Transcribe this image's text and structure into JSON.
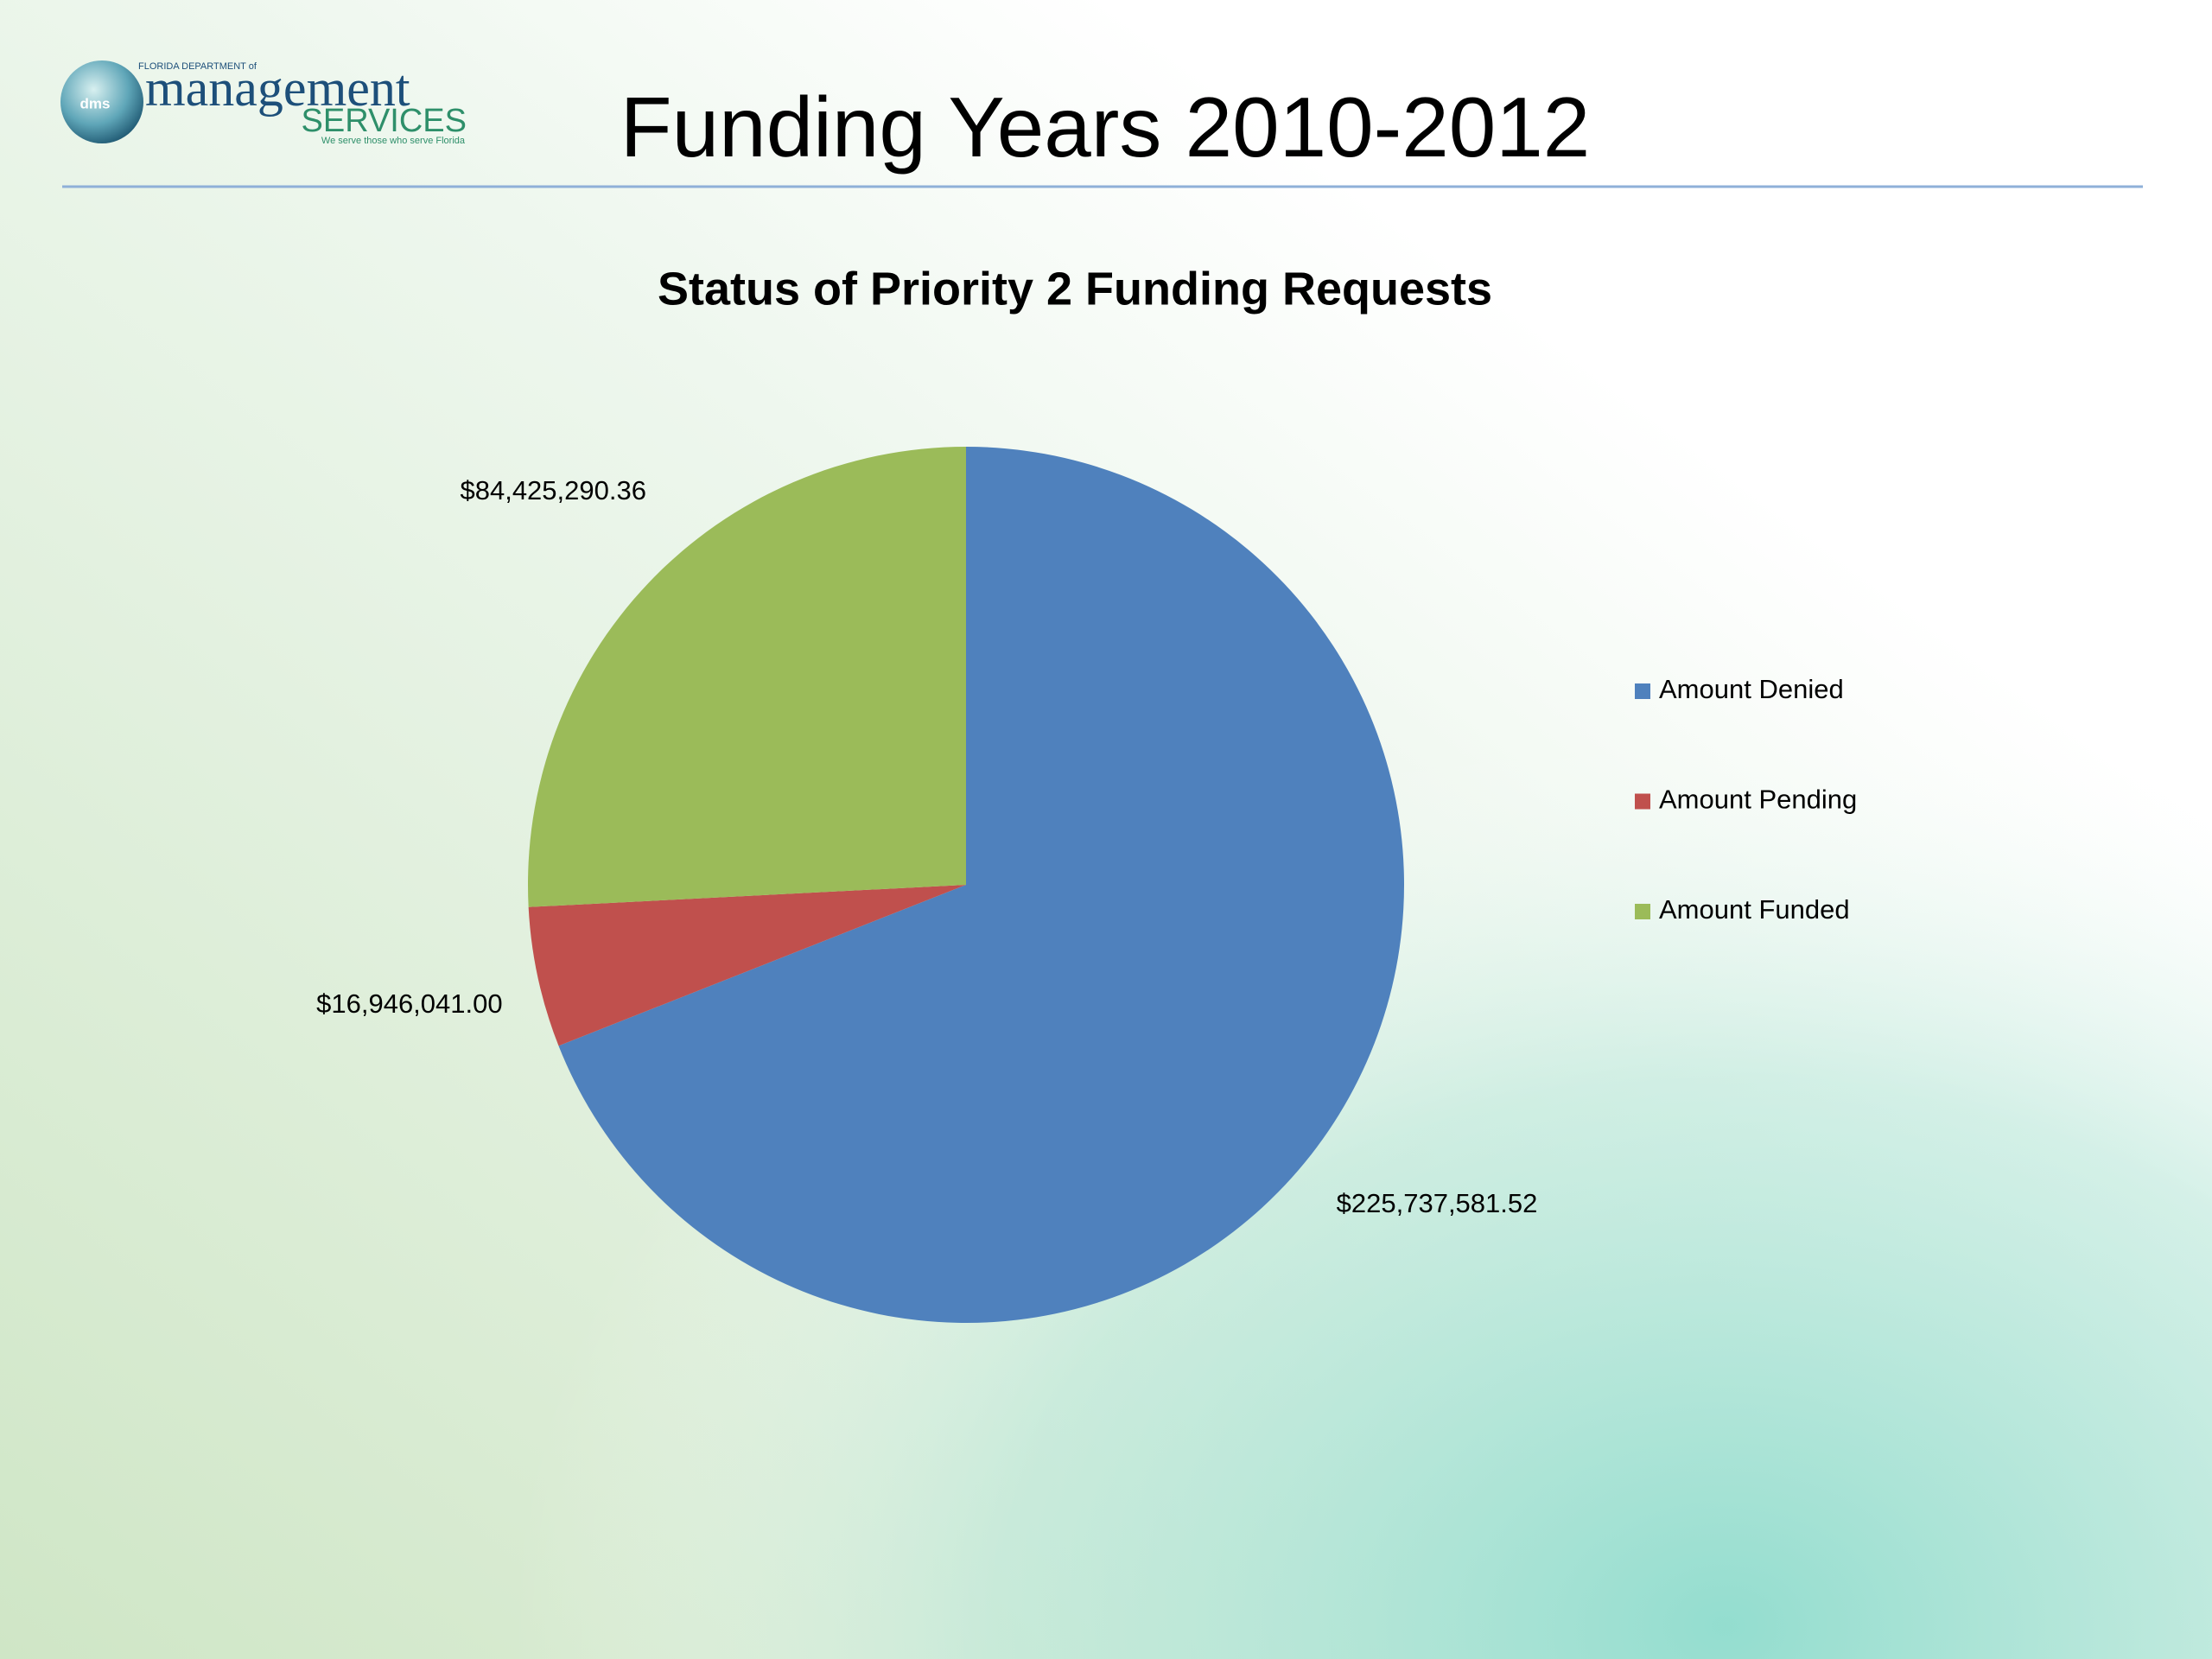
{
  "logo": {
    "department": "FLORIDA DEPARTMENT of",
    "name": "management",
    "services": "SERVICES",
    "tagline": "We serve those who serve Florida",
    "badge": "dms"
  },
  "slide_title": "Funding Years 2010-2012",
  "chart_data": {
    "type": "pie",
    "title": "Status of Priority 2 Funding Requests",
    "categories": [
      "Amount Denied",
      "Amount Pending",
      "Amount Funded"
    ],
    "values": [
      225737581.52,
      16946041.0,
      84425290.36
    ],
    "value_labels": [
      "$225,737,581.52",
      "$16,946,041.00",
      "$84,425,290.36"
    ],
    "colors": [
      "#4f81bd",
      "#c0504d",
      "#9bbb59"
    ],
    "legend": "right"
  }
}
